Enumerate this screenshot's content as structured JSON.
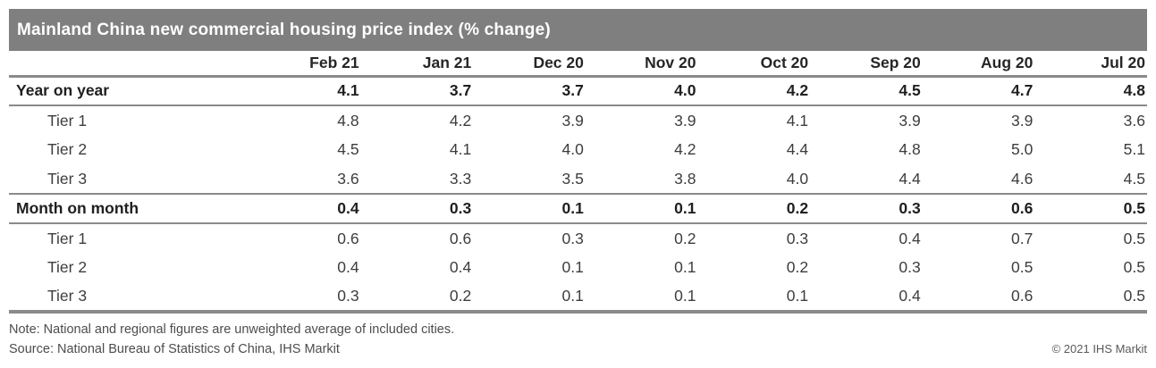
{
  "title_bar": {
    "title": "Mainland China new commercial housing price index (% change)"
  },
  "colors": {
    "title_bar_background": "#7f7f7f",
    "title_text": "#ffffff",
    "rule_gray": "#8a8a8a",
    "bold_row_text": "#1f1f1f",
    "regular_row_text": "#3d3d3d",
    "footer_text": "#4d4d4d"
  },
  "chart_data": {
    "type": "table",
    "title": "Mainland China new commercial housing price index (% change)",
    "columns": [
      "Feb 21",
      "Jan 21",
      "Dec 20",
      "Nov 20",
      "Oct 20",
      "Sep 20",
      "Aug 20",
      "Jul 20"
    ],
    "rows": [
      {
        "label": "Year on year",
        "bold": true,
        "indent": false,
        "values": [
          "4.1",
          "3.7",
          "3.7",
          "4.0",
          "4.2",
          "4.5",
          "4.7",
          "4.8"
        ]
      },
      {
        "label": "Tier 1",
        "bold": false,
        "indent": true,
        "values": [
          "4.8",
          "4.2",
          "3.9",
          "3.9",
          "4.1",
          "3.9",
          "3.9",
          "3.6"
        ]
      },
      {
        "label": "Tier 2",
        "bold": false,
        "indent": true,
        "values": [
          "4.5",
          "4.1",
          "4.0",
          "4.2",
          "4.4",
          "4.8",
          "5.0",
          "5.1"
        ]
      },
      {
        "label": "Tier 3",
        "bold": false,
        "indent": true,
        "values": [
          "3.6",
          "3.3",
          "3.5",
          "3.8",
          "4.0",
          "4.4",
          "4.6",
          "4.5"
        ]
      },
      {
        "label": "Month on month",
        "bold": true,
        "indent": false,
        "values": [
          "0.4",
          "0.3",
          "0.1",
          "0.1",
          "0.2",
          "0.3",
          "0.6",
          "0.5"
        ]
      },
      {
        "label": "Tier 1",
        "bold": false,
        "indent": true,
        "values": [
          "0.6",
          "0.6",
          "0.3",
          "0.2",
          "0.3",
          "0.4",
          "0.7",
          "0.5"
        ]
      },
      {
        "label": "Tier 2",
        "bold": false,
        "indent": true,
        "values": [
          "0.4",
          "0.4",
          "0.1",
          "0.1",
          "0.2",
          "0.3",
          "0.5",
          "0.5"
        ]
      },
      {
        "label": "Tier 3",
        "bold": false,
        "indent": true,
        "values": [
          "0.3",
          "0.2",
          "0.1",
          "0.1",
          "0.1",
          "0.4",
          "0.6",
          "0.5"
        ]
      }
    ]
  },
  "footer": {
    "note": "Note: National and regional figures are unweighted average of included cities.",
    "source": "Source: National Bureau of Statistics of China, IHS Markit",
    "copyright": "© 2021 IHS Markit"
  }
}
